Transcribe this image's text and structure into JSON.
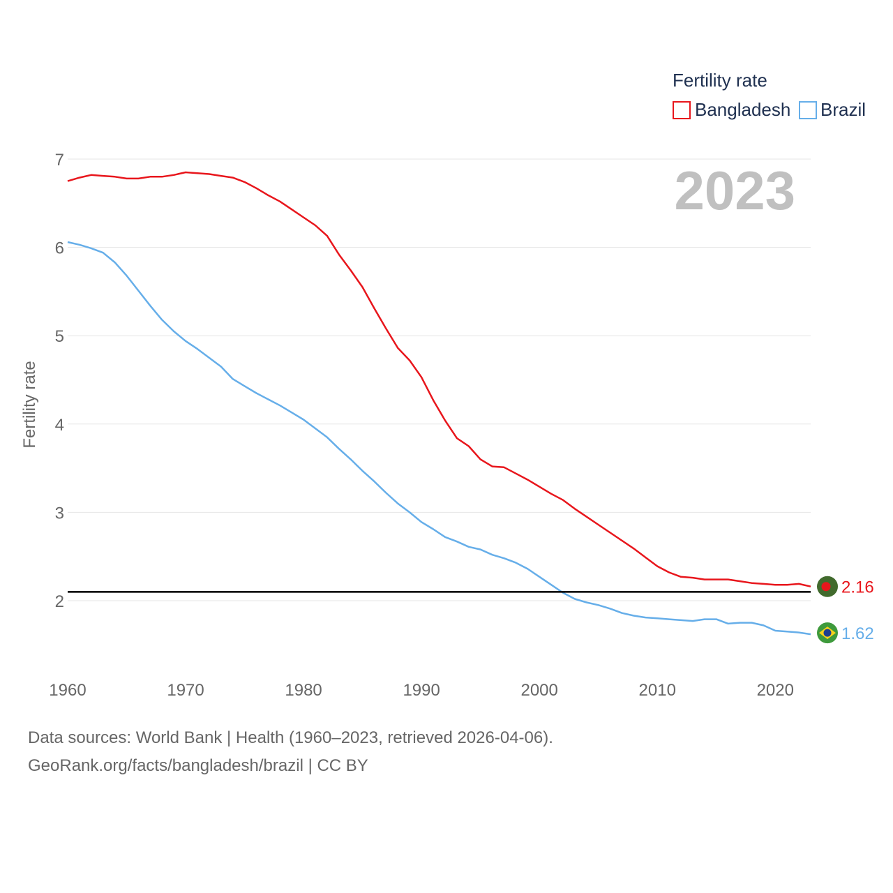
{
  "chart_data": {
    "type": "line",
    "ylabel": "Fertility rate",
    "xlabel": "",
    "xlim": [
      1960,
      2023
    ],
    "ylim": [
      1.4,
      7.1
    ],
    "xticks": [
      1960,
      1970,
      1980,
      1990,
      2000,
      2010,
      2020
    ],
    "yticks": [
      2,
      3,
      4,
      5,
      6,
      7
    ],
    "grid": true,
    "year_label": "2023",
    "legend": {
      "title": "Fertility rate",
      "position": "top-right"
    },
    "reference_line": {
      "y": 2.1
    },
    "x": [
      1960,
      1961,
      1962,
      1963,
      1964,
      1965,
      1966,
      1967,
      1968,
      1969,
      1970,
      1971,
      1972,
      1973,
      1974,
      1975,
      1976,
      1977,
      1978,
      1979,
      1980,
      1981,
      1982,
      1983,
      1984,
      1985,
      1986,
      1987,
      1988,
      1989,
      1990,
      1991,
      1992,
      1993,
      1994,
      1995,
      1996,
      1997,
      1998,
      1999,
      2000,
      2001,
      2002,
      2003,
      2004,
      2005,
      2006,
      2007,
      2008,
      2009,
      2010,
      2011,
      2012,
      2013,
      2014,
      2015,
      2016,
      2017,
      2018,
      2019,
      2020,
      2021,
      2022,
      2023
    ],
    "series": [
      {
        "name": "Bangladesh",
        "color": "#e8161c",
        "end_label": "2.16",
        "values": [
          6.75,
          6.79,
          6.82,
          6.81,
          6.8,
          6.78,
          6.78,
          6.8,
          6.8,
          6.82,
          6.85,
          6.84,
          6.83,
          6.81,
          6.79,
          6.74,
          6.67,
          6.59,
          6.52,
          6.43,
          6.34,
          6.25,
          6.13,
          5.92,
          5.74,
          5.55,
          5.31,
          5.08,
          4.86,
          4.72,
          4.53,
          4.27,
          4.04,
          3.84,
          3.75,
          3.6,
          3.52,
          3.51,
          3.44,
          3.37,
          3.29,
          3.21,
          3.14,
          3.04,
          2.95,
          2.86,
          2.77,
          2.68,
          2.59,
          2.49,
          2.39,
          2.32,
          2.27,
          2.26,
          2.24,
          2.24,
          2.24,
          2.22,
          2.2,
          2.19,
          2.18,
          2.18,
          2.19,
          2.16
        ]
      },
      {
        "name": "Brazil",
        "color": "#66aee9",
        "end_label": "1.62",
        "values": [
          6.06,
          6.03,
          5.99,
          5.94,
          5.83,
          5.68,
          5.51,
          5.34,
          5.18,
          5.05,
          4.94,
          4.85,
          4.75,
          4.65,
          4.51,
          4.43,
          4.35,
          4.28,
          4.21,
          4.13,
          4.05,
          3.95,
          3.85,
          3.72,
          3.6,
          3.47,
          3.35,
          3.22,
          3.1,
          3.0,
          2.89,
          2.81,
          2.72,
          2.67,
          2.61,
          2.58,
          2.52,
          2.48,
          2.43,
          2.36,
          2.27,
          2.18,
          2.09,
          2.02,
          1.98,
          1.95,
          1.91,
          1.86,
          1.83,
          1.81,
          1.8,
          1.79,
          1.78,
          1.77,
          1.79,
          1.79,
          1.74,
          1.75,
          1.75,
          1.72,
          1.66,
          1.65,
          1.64,
          1.62
        ]
      }
    ]
  },
  "footer": {
    "line1": "Data sources: World Bank | Health (1960–2023, retrieved 2026-04-06).",
    "line2": "GeoRank.org/facts/bangladesh/brazil | CC BY"
  },
  "icons": {
    "bangladesh": "bangladesh-flag-icon",
    "brazil": "brazil-flag-icon"
  }
}
